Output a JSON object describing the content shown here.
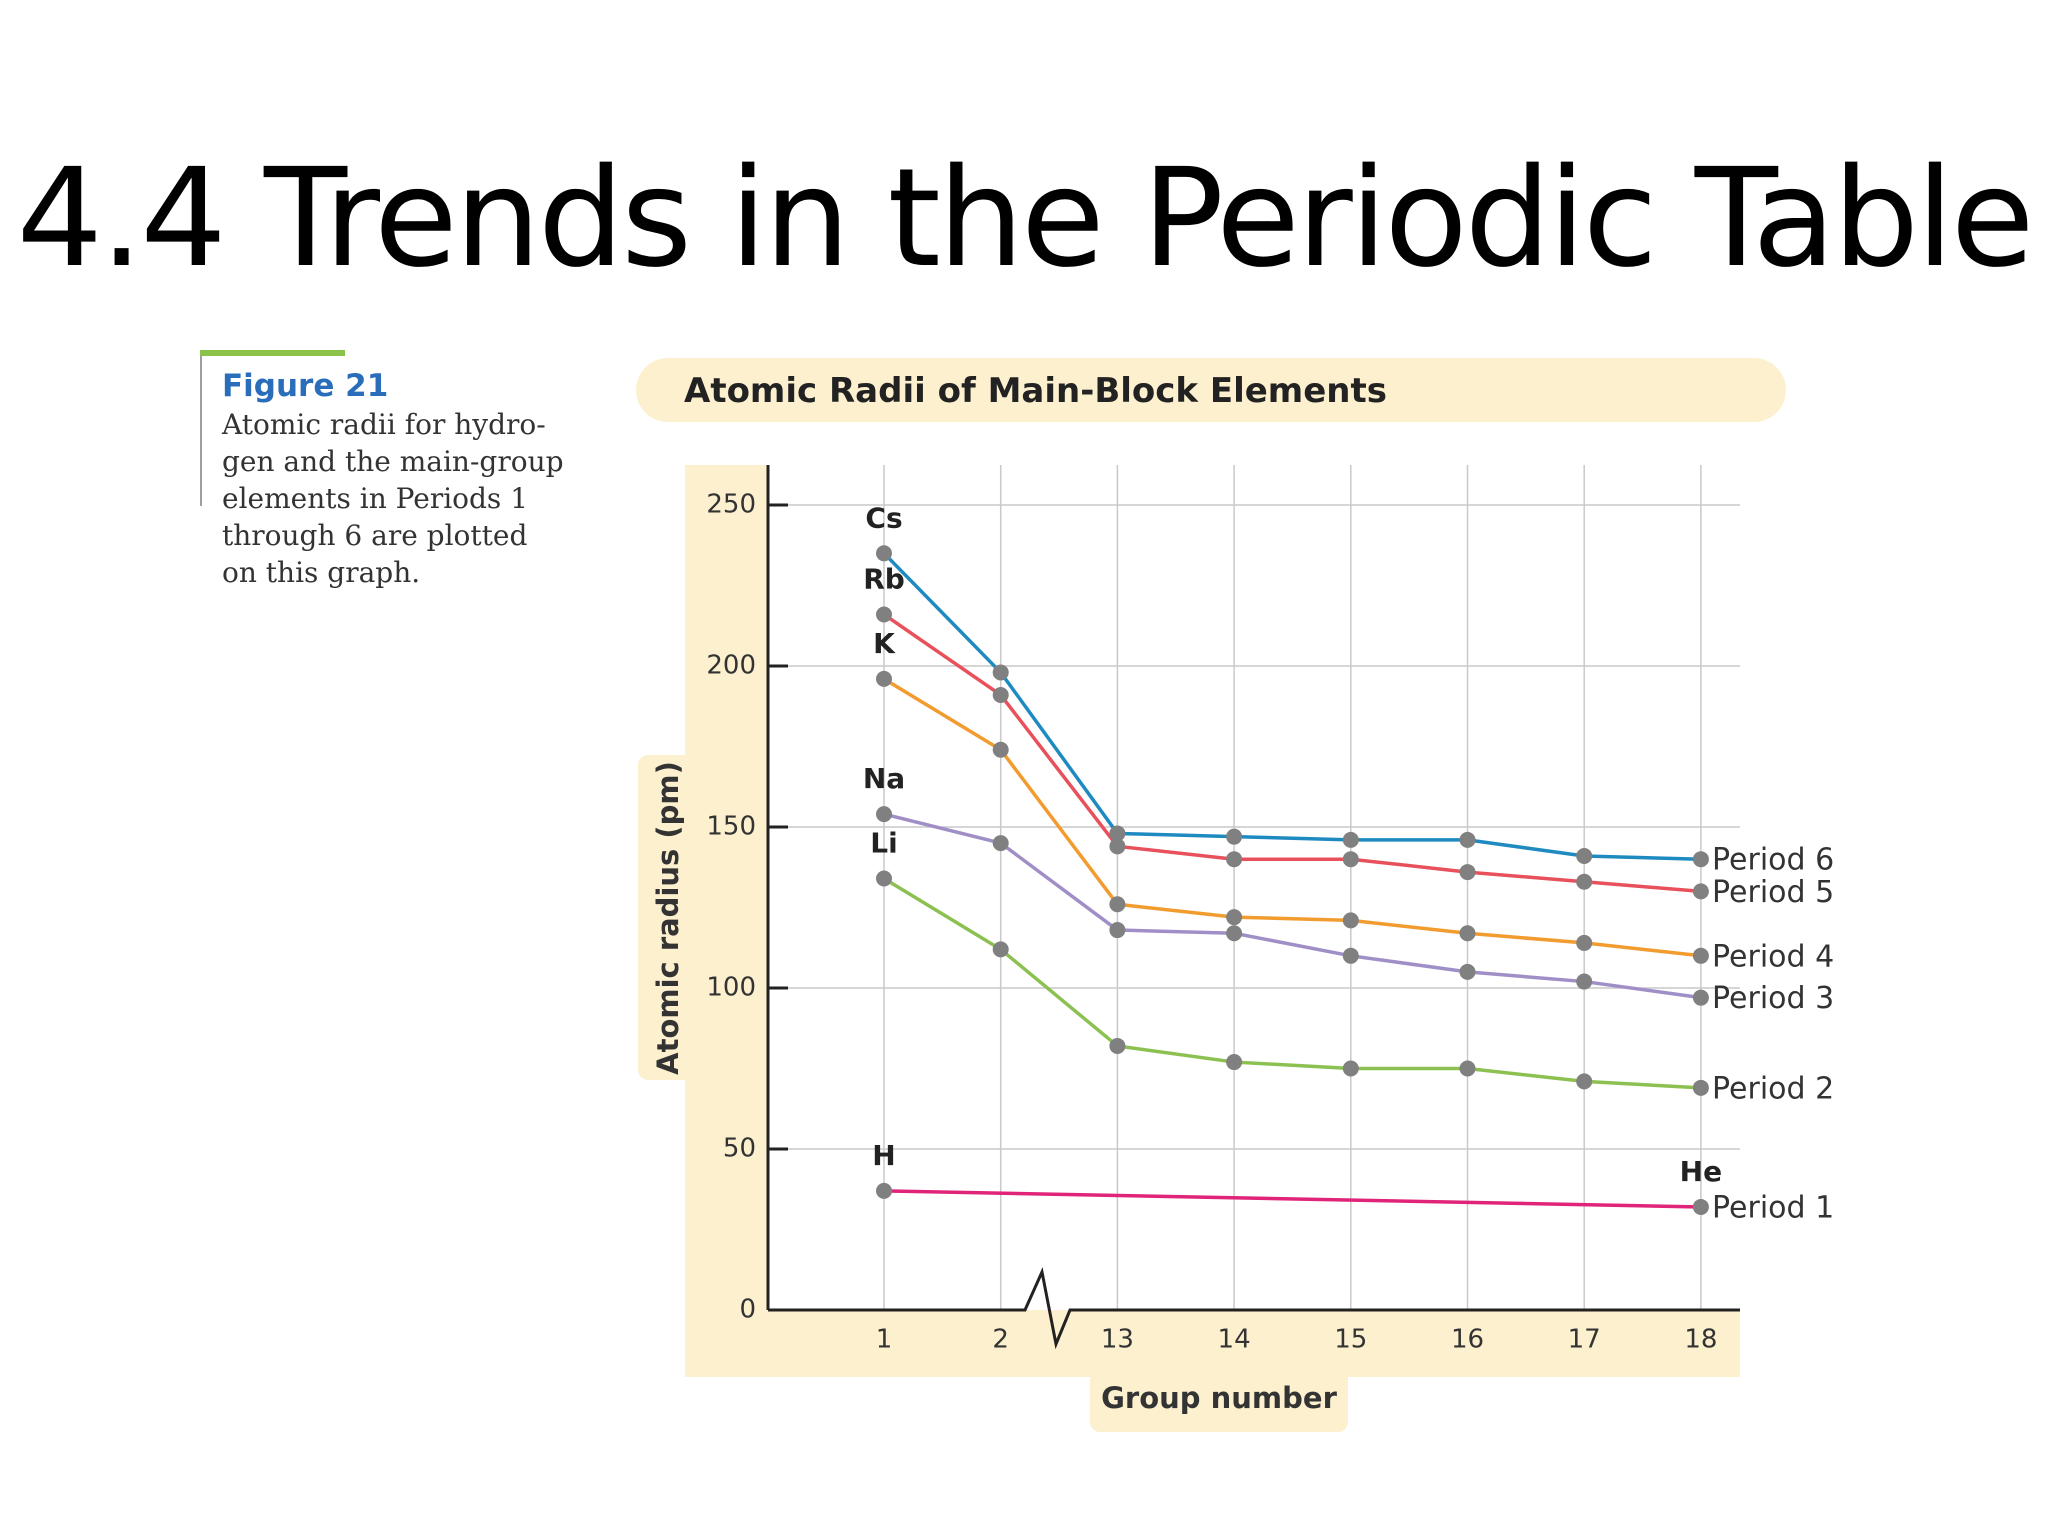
{
  "slide": {
    "title": "4.4 Trends in the Periodic Table"
  },
  "caption": {
    "label": "Figure 21",
    "lines": [
      "Atomic radii for hydro-",
      "gen and the main-group",
      "elements in Periods 1",
      "through 6 are plotted",
      "on this graph."
    ]
  },
  "chart_data": {
    "type": "line",
    "title": "Atomic Radii of Main-Block Elements",
    "xlabel": "Group number",
    "ylabel": "Atomic radius (pm)",
    "categories": [
      "1",
      "2",
      "13",
      "14",
      "15",
      "16",
      "17",
      "18"
    ],
    "yticks": [
      "0",
      "50",
      "100",
      "150",
      "200",
      "250"
    ],
    "ylim": [
      0,
      250
    ],
    "grid": true,
    "axis_break": "between 2 and 13",
    "series": [
      {
        "name": "Period 1",
        "color": "#e0247a",
        "values": [
          37,
          null,
          null,
          null,
          null,
          null,
          null,
          32
        ]
      },
      {
        "name": "Period 2",
        "color": "#8cc152",
        "values": [
          134,
          112,
          82,
          77,
          75,
          75,
          71,
          69
        ]
      },
      {
        "name": "Period 3",
        "color": "#a08fc7",
        "values": [
          154,
          145,
          118,
          117,
          110,
          105,
          102,
          97
        ]
      },
      {
        "name": "Period 4",
        "color": "#f29b2e",
        "values": [
          196,
          174,
          126,
          122,
          121,
          117,
          114,
          110
        ]
      },
      {
        "name": "Period 5",
        "color": "#e8505b",
        "values": [
          216,
          191,
          144,
          140,
          140,
          136,
          133,
          130
        ]
      },
      {
        "name": "Period 6",
        "color": "#1f8ac0",
        "values": [
          235,
          198,
          148,
          147,
          146,
          146,
          141,
          140
        ]
      }
    ],
    "element_labels": [
      {
        "text": "Cs",
        "series": 5,
        "index": 0
      },
      {
        "text": "Rb",
        "series": 4,
        "index": 0
      },
      {
        "text": "K",
        "series": 3,
        "index": 0
      },
      {
        "text": "Na",
        "series": 2,
        "index": 0
      },
      {
        "text": "Li",
        "series": 1,
        "index": 0
      },
      {
        "text": "H",
        "series": 0,
        "index": 0
      },
      {
        "text": "He",
        "series": 0,
        "index": 7
      }
    ]
  }
}
